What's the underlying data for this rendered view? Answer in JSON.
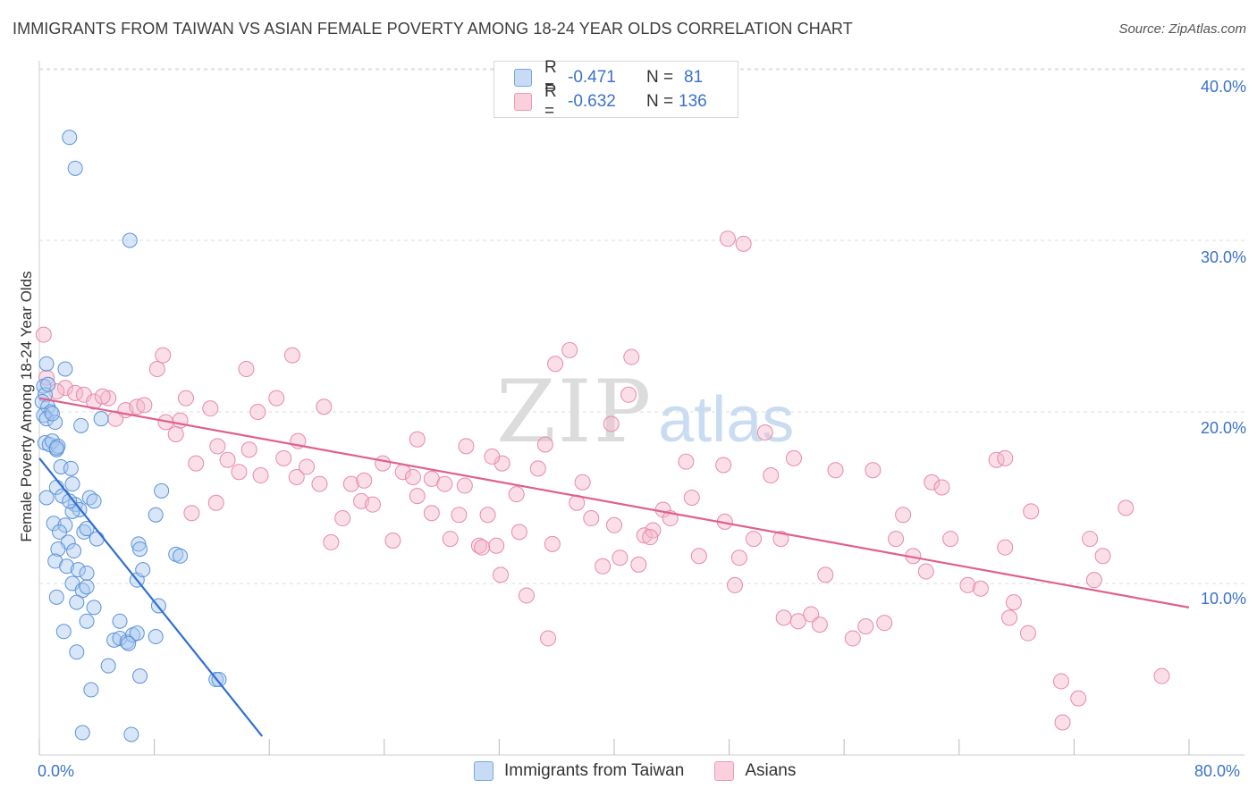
{
  "title": "IMMIGRANTS FROM TAIWAN VS ASIAN FEMALE POVERTY AMONG 18-24 YEAR OLDS CORRELATION CHART",
  "source": "Source: ZipAtlas.com",
  "watermark": {
    "zip": "ZIP",
    "atlas": "atlas"
  },
  "legend": {
    "series": [
      {
        "r_label": "R =",
        "r_value": "-0.471",
        "n_label": "N =",
        "n_value": "81",
        "color": "#a9c8ef"
      },
      {
        "r_label": "R =",
        "r_value": "-0.632",
        "n_label": "N =",
        "n_value": "136",
        "color": "#f4b8cb"
      }
    ]
  },
  "bottom_legend": [
    "Immigrants from Taiwan",
    "Asians"
  ],
  "chart_data": {
    "type": "scatter",
    "ylabel": "Female Poverty Among 18-24 Year Olds",
    "xlim": [
      0,
      80
    ],
    "ylim": [
      0,
      40
    ],
    "x_tick_labels": [
      "0.0%",
      "80.0%"
    ],
    "y_tick_labels": [
      "10.0%",
      "20.0%",
      "30.0%",
      "40.0%"
    ],
    "y_ticks": [
      10,
      20,
      30,
      40
    ],
    "colors": {
      "taiwan_fill": "#a9c8ef",
      "taiwan_stroke": "#5b93d8",
      "taiwan_line": "#2f6fd1",
      "asians_fill": "#f4b8cb",
      "asians_stroke": "#e88aa8",
      "asians_line": "#e0608d",
      "grid": "#dddddd",
      "tick_text": "#3a72c8"
    },
    "grid": true,
    "series": [
      {
        "name": "Immigrants from Taiwan",
        "trend": {
          "x0": 0,
          "y0": 17.3,
          "x1": 15.5,
          "y1": 1.1
        },
        "points": [
          [
            2.1,
            36.0
          ],
          [
            2.5,
            34.2
          ],
          [
            6.3,
            30.0
          ],
          [
            0.3,
            21.5
          ],
          [
            0.5,
            22.8
          ],
          [
            1.8,
            22.5
          ],
          [
            0.4,
            21.0
          ],
          [
            0.2,
            20.6
          ],
          [
            0.6,
            20.3
          ],
          [
            0.8,
            20.0
          ],
          [
            0.3,
            19.8
          ],
          [
            0.5,
            19.6
          ],
          [
            1.1,
            19.4
          ],
          [
            4.3,
            19.6
          ],
          [
            2.9,
            19.2
          ],
          [
            0.4,
            18.2
          ],
          [
            0.7,
            18.1
          ],
          [
            1.2,
            17.8
          ],
          [
            0.9,
            18.3
          ],
          [
            1.3,
            18.0
          ],
          [
            1.5,
            16.8
          ],
          [
            2.2,
            16.7
          ],
          [
            2.3,
            15.8
          ],
          [
            1.2,
            15.6
          ],
          [
            0.5,
            15.0
          ],
          [
            1.6,
            15.1
          ],
          [
            2.5,
            14.6
          ],
          [
            2.8,
            14.3
          ],
          [
            3.5,
            15.0
          ],
          [
            3.8,
            14.8
          ],
          [
            8.5,
            15.4
          ],
          [
            2.3,
            14.2
          ],
          [
            1.0,
            13.5
          ],
          [
            1.8,
            13.4
          ],
          [
            1.4,
            13.0
          ],
          [
            3.1,
            13.0
          ],
          [
            8.1,
            14.0
          ],
          [
            2.0,
            12.4
          ],
          [
            4.0,
            12.6
          ],
          [
            6.9,
            12.3
          ],
          [
            1.3,
            12.0
          ],
          [
            2.4,
            11.9
          ],
          [
            7.0,
            12.0
          ],
          [
            9.5,
            11.7
          ],
          [
            9.8,
            11.6
          ],
          [
            1.1,
            11.3
          ],
          [
            1.9,
            11.0
          ],
          [
            2.7,
            10.8
          ],
          [
            3.3,
            10.6
          ],
          [
            6.8,
            10.2
          ],
          [
            7.2,
            10.8
          ],
          [
            2.3,
            10.0
          ],
          [
            3.0,
            9.6
          ],
          [
            3.3,
            9.8
          ],
          [
            1.2,
            9.2
          ],
          [
            2.6,
            8.9
          ],
          [
            3.8,
            8.6
          ],
          [
            8.3,
            8.7
          ],
          [
            3.3,
            7.8
          ],
          [
            5.6,
            7.8
          ],
          [
            1.7,
            7.2
          ],
          [
            5.2,
            6.7
          ],
          [
            5.6,
            6.8
          ],
          [
            6.1,
            6.6
          ],
          [
            6.5,
            7.0
          ],
          [
            6.8,
            7.1
          ],
          [
            8.1,
            6.9
          ],
          [
            2.6,
            6.0
          ],
          [
            4.8,
            5.2
          ],
          [
            7.0,
            4.6
          ],
          [
            12.3,
            4.4
          ],
          [
            12.5,
            4.4
          ],
          [
            3.6,
            3.8
          ],
          [
            3.0,
            1.3
          ],
          [
            6.4,
            1.2
          ],
          [
            0.6,
            21.6
          ],
          [
            0.9,
            19.9
          ],
          [
            1.2,
            17.9
          ],
          [
            2.1,
            14.8
          ],
          [
            3.3,
            13.2
          ],
          [
            6.2,
            6.5
          ]
        ]
      },
      {
        "name": "Asians",
        "trend": {
          "x0": 0,
          "y0": 20.8,
          "x1": 80,
          "y1": 8.6
        },
        "points": [
          [
            0.3,
            24.5
          ],
          [
            0.5,
            22.0
          ],
          [
            1.8,
            21.4
          ],
          [
            1.2,
            21.2
          ],
          [
            2.5,
            21.1
          ],
          [
            3.1,
            21.0
          ],
          [
            4.8,
            20.8
          ],
          [
            3.8,
            20.6
          ],
          [
            4.4,
            20.9
          ],
          [
            6.0,
            20.1
          ],
          [
            6.8,
            20.3
          ],
          [
            5.3,
            19.6
          ],
          [
            7.3,
            20.4
          ],
          [
            8.8,
            19.4
          ],
          [
            9.8,
            19.5
          ],
          [
            10.2,
            20.8
          ],
          [
            11.9,
            20.2
          ],
          [
            8.2,
            22.5
          ],
          [
            8.6,
            23.3
          ],
          [
            14.4,
            22.5
          ],
          [
            17.6,
            23.3
          ],
          [
            15.2,
            20.0
          ],
          [
            16.5,
            20.8
          ],
          [
            19.8,
            20.3
          ],
          [
            18.0,
            18.3
          ],
          [
            12.4,
            18.0
          ],
          [
            14.6,
            17.8
          ],
          [
            17.0,
            17.3
          ],
          [
            9.5,
            18.7
          ],
          [
            10.9,
            17.0
          ],
          [
            13.1,
            17.2
          ],
          [
            13.9,
            16.5
          ],
          [
            15.4,
            16.3
          ],
          [
            17.9,
            16.2
          ],
          [
            18.6,
            16.8
          ],
          [
            19.5,
            15.8
          ],
          [
            21.7,
            15.8
          ],
          [
            22.6,
            16.0
          ],
          [
            23.9,
            17.0
          ],
          [
            25.3,
            16.5
          ],
          [
            26.0,
            16.2
          ],
          [
            27.3,
            16.1
          ],
          [
            28.2,
            15.8
          ],
          [
            29.6,
            15.7
          ],
          [
            12.3,
            14.7
          ],
          [
            10.6,
            14.1
          ],
          [
            21.1,
            13.8
          ],
          [
            20.3,
            12.4
          ],
          [
            22.4,
            14.8
          ],
          [
            24.6,
            12.5
          ],
          [
            26.3,
            15.1
          ],
          [
            27.3,
            14.1
          ],
          [
            28.6,
            12.6
          ],
          [
            29.2,
            14.0
          ],
          [
            30.6,
            12.2
          ],
          [
            31.8,
            12.2
          ],
          [
            31.2,
            14.0
          ],
          [
            26.3,
            18.4
          ],
          [
            29.7,
            18.0
          ],
          [
            32.2,
            17.0
          ],
          [
            33.2,
            15.2
          ],
          [
            33.4,
            13.0
          ],
          [
            35.2,
            18.1
          ],
          [
            35.7,
            12.3
          ],
          [
            35.9,
            22.8
          ],
          [
            36.9,
            23.6
          ],
          [
            37.4,
            14.7
          ],
          [
            37.8,
            15.9
          ],
          [
            38.4,
            13.8
          ],
          [
            39.2,
            11.0
          ],
          [
            39.8,
            19.3
          ],
          [
            40.0,
            13.4
          ],
          [
            40.4,
            11.5
          ],
          [
            41.0,
            21.0
          ],
          [
            41.2,
            23.2
          ],
          [
            41.7,
            11.1
          ],
          [
            42.1,
            12.8
          ],
          [
            42.7,
            13.1
          ],
          [
            43.4,
            14.3
          ],
          [
            43.9,
            13.8
          ],
          [
            45.0,
            17.1
          ],
          [
            45.4,
            15.0
          ],
          [
            45.9,
            11.6
          ],
          [
            47.6,
            16.9
          ],
          [
            47.7,
            13.6
          ],
          [
            48.7,
            11.5
          ],
          [
            48.4,
            9.9
          ],
          [
            49.7,
            12.6
          ],
          [
            50.5,
            18.8
          ],
          [
            50.9,
            16.3
          ],
          [
            51.6,
            12.6
          ],
          [
            52.5,
            17.3
          ],
          [
            51.8,
            8.0
          ],
          [
            52.8,
            7.8
          ],
          [
            53.7,
            8.2
          ],
          [
            54.7,
            10.5
          ],
          [
            54.3,
            7.6
          ],
          [
            55.4,
            16.6
          ],
          [
            56.6,
            6.8
          ],
          [
            57.5,
            7.5
          ],
          [
            58.8,
            7.7
          ],
          [
            58.0,
            16.6
          ],
          [
            59.6,
            12.6
          ],
          [
            60.1,
            14.0
          ],
          [
            60.8,
            11.6
          ],
          [
            61.7,
            10.7
          ],
          [
            62.1,
            15.9
          ],
          [
            62.8,
            15.6
          ],
          [
            63.4,
            12.6
          ],
          [
            64.6,
            9.9
          ],
          [
            65.5,
            9.7
          ],
          [
            67.2,
            12.1
          ],
          [
            67.5,
            8.0
          ],
          [
            67.8,
            8.9
          ],
          [
            66.6,
            17.2
          ],
          [
            67.2,
            17.3
          ],
          [
            69.0,
            14.2
          ],
          [
            68.8,
            7.1
          ],
          [
            71.1,
            4.3
          ],
          [
            71.2,
            1.9
          ],
          [
            72.3,
            3.3
          ],
          [
            73.1,
            12.6
          ],
          [
            73.4,
            10.2
          ],
          [
            74.0,
            11.6
          ],
          [
            75.6,
            14.4
          ],
          [
            78.1,
            4.6
          ],
          [
            30.8,
            12.1
          ],
          [
            32.1,
            10.5
          ],
          [
            33.9,
            9.3
          ],
          [
            35.4,
            6.8
          ],
          [
            23.2,
            14.6
          ],
          [
            34.7,
            16.7
          ],
          [
            47.9,
            30.1
          ],
          [
            49.0,
            29.8
          ],
          [
            31.5,
            17.4
          ],
          [
            42.5,
            12.7
          ]
        ]
      }
    ]
  }
}
